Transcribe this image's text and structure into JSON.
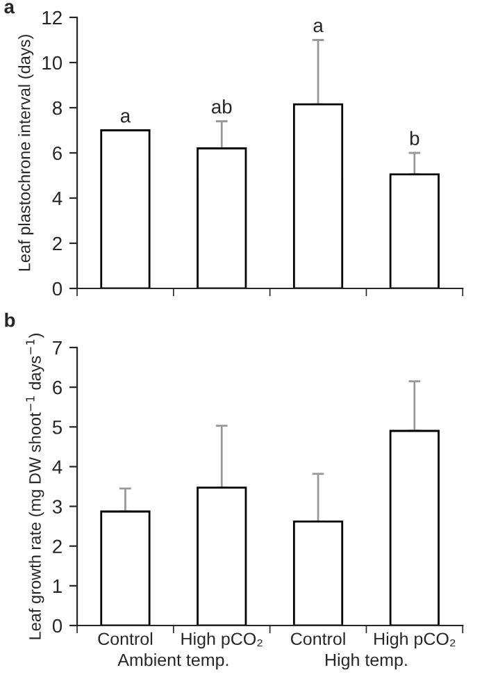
{
  "chart_data": [
    {
      "type": "bar",
      "title": "a",
      "ylabel": "Leaf plastochrone interval (days)",
      "categories": [
        null,
        null,
        null,
        null
      ],
      "series": [
        {
          "color": "#ffffff",
          "values": [
            7.0,
            6.2,
            8.15,
            5.05
          ],
          "errors": [
            null,
            [
              6.2,
              7.4
            ],
            [
              8.15,
              11.0
            ],
            [
              5.05,
              6.0
            ]
          ]
        }
      ],
      "ylim": [
        0,
        12
      ],
      "yticks": [
        0,
        2,
        4,
        6,
        8,
        10,
        12
      ],
      "grid": false,
      "annotations": [
        "a",
        "ab",
        "a",
        "b"
      ]
    },
    {
      "type": "bar",
      "title": "b",
      "ylabel": "Leaf growth rate (mg DW shoot$^{−1}$ days$^{−1}$)",
      "categories": [
        "Control",
        "High pCO₂",
        "Control",
        "High pCO₂"
      ],
      "series": [
        {
          "color": "#ffffff",
          "values": [
            2.87,
            3.47,
            2.62,
            4.9
          ],
          "errors": [
            [
              2.87,
              3.45
            ],
            [
              3.47,
              5.03
            ],
            [
              2.62,
              3.82
            ],
            [
              4.9,
              6.15
            ]
          ]
        }
      ],
      "ylim": [
        0,
        7
      ],
      "yticks": [
        0,
        1,
        2,
        3,
        4,
        5,
        6,
        7
      ],
      "grid": false,
      "annotations": [
        "Ambient temp.",
        "High temp."
      ]
    }
  ]
}
